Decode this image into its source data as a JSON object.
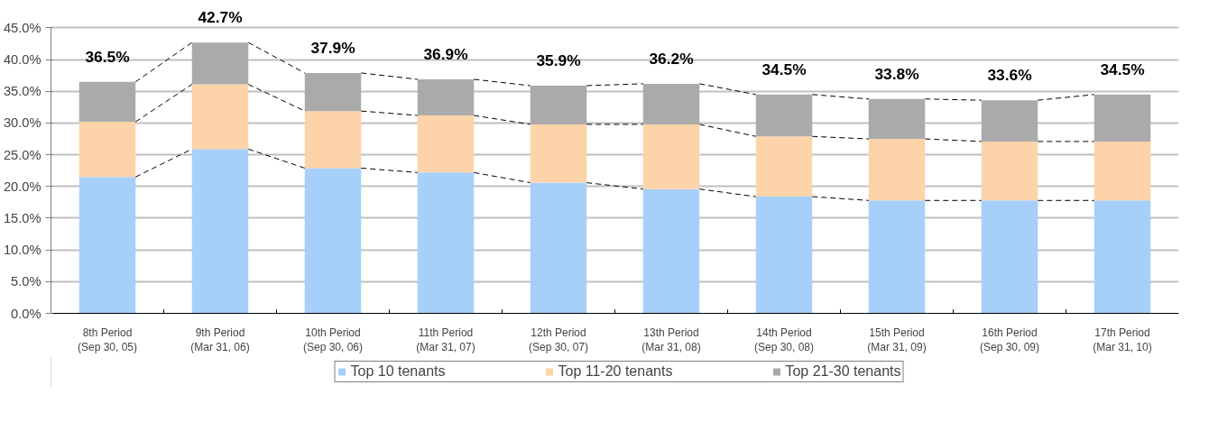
{
  "chart_data": {
    "type": "bar",
    "stacked": true,
    "categories": [
      "8th Period\n(Sep 30, 05)",
      "9th Period\n(Mar 31, 06)",
      "10th Period\n(Sep 30, 06)",
      "11th Period\n(Mar 31, 07)",
      "12th Period\n(Sep 30, 07)",
      "13th Period\n(Mar 31, 08)",
      "14th Period\n(Sep 30, 08)",
      "15th Period\n(Mar 31, 09)",
      "16th Period\n(Sep 30, 09)",
      "17th Period\n(Mar 31, 10)"
    ],
    "series": [
      {
        "name": "Top 10 tenants",
        "color": "#a6d0fa",
        "values": [
          21.5,
          25.9,
          22.9,
          22.2,
          20.6,
          19.6,
          18.4,
          17.8,
          17.8,
          17.8
        ]
      },
      {
        "name": "Top 11-20 tenants",
        "color": "#fdd3aa",
        "values": [
          8.7,
          10.2,
          9.0,
          9.0,
          9.2,
          10.2,
          9.5,
          9.7,
          9.3,
          9.3
        ]
      },
      {
        "name": "Top 21-30 tenants",
        "color": "#aaaaaa",
        "values": [
          6.3,
          6.6,
          6.0,
          5.7,
          6.1,
          6.4,
          6.6,
          6.3,
          6.5,
          7.4
        ]
      }
    ],
    "totals": [
      "36.5%",
      "42.7%",
      "37.9%",
      "36.9%",
      "35.9%",
      "36.2%",
      "34.5%",
      "33.8%",
      "33.6%",
      "34.5%"
    ],
    "ylim": [
      0,
      45
    ],
    "yticks": [
      {
        "value": 0,
        "label": "0.0%"
      },
      {
        "value": 5,
        "label": "5.0%"
      },
      {
        "value": 10,
        "label": "10.0%"
      },
      {
        "value": 15,
        "label": "15.0%"
      },
      {
        "value": 20,
        "label": "20.0%"
      },
      {
        "value": 25,
        "label": "25.0%"
      },
      {
        "value": 30,
        "label": "30.0%"
      },
      {
        "value": 35,
        "label": "35.0%"
      },
      {
        "value": 40,
        "label": "40.0%"
      },
      {
        "value": 45,
        "label": "45.0%"
      }
    ],
    "grid": "y",
    "legend": "bottom"
  }
}
